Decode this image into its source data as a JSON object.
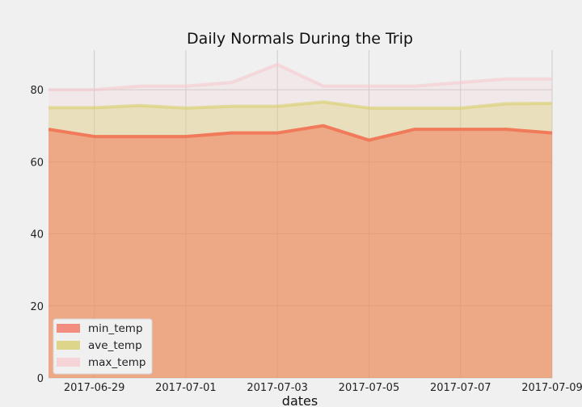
{
  "chart_data": {
    "type": "area",
    "title": "Daily Normals During the Trip",
    "xlabel": "dates",
    "ylabel": "",
    "x": [
      "2017-06-28",
      "2017-06-29",
      "2017-06-30",
      "2017-07-01",
      "2017-07-02",
      "2017-07-03",
      "2017-07-04",
      "2017-07-05",
      "2017-07-06",
      "2017-07-07",
      "2017-07-08",
      "2017-07-09"
    ],
    "xlim": [
      "2017-06-28",
      "2017-07-09"
    ],
    "ylim": [
      0,
      91
    ],
    "xticks": [
      "2017-06-29",
      "2017-07-01",
      "2017-07-03",
      "2017-07-05",
      "2017-07-07",
      "2017-07-09"
    ],
    "yticks": [
      0,
      20,
      40,
      60,
      80
    ],
    "stacked": false,
    "grid": true,
    "legend_position": "lower left",
    "series": [
      {
        "name": "min_temp",
        "color": "#f07a5a",
        "values": [
          69,
          67,
          67,
          67,
          68,
          68,
          70,
          66,
          69,
          69,
          69,
          68
        ]
      },
      {
        "name": "ave_temp",
        "color": "#d9cf6a",
        "values": [
          75.0,
          75.0,
          75.6,
          74.9,
          75.4,
          75.4,
          76.6,
          74.9,
          74.9,
          74.9,
          76.1,
          76.2
        ]
      },
      {
        "name": "max_temp",
        "color": "#f6c9cf",
        "values": [
          80,
          80,
          81,
          81,
          82,
          87,
          81,
          81,
          81,
          82,
          83,
          83
        ]
      }
    ]
  }
}
